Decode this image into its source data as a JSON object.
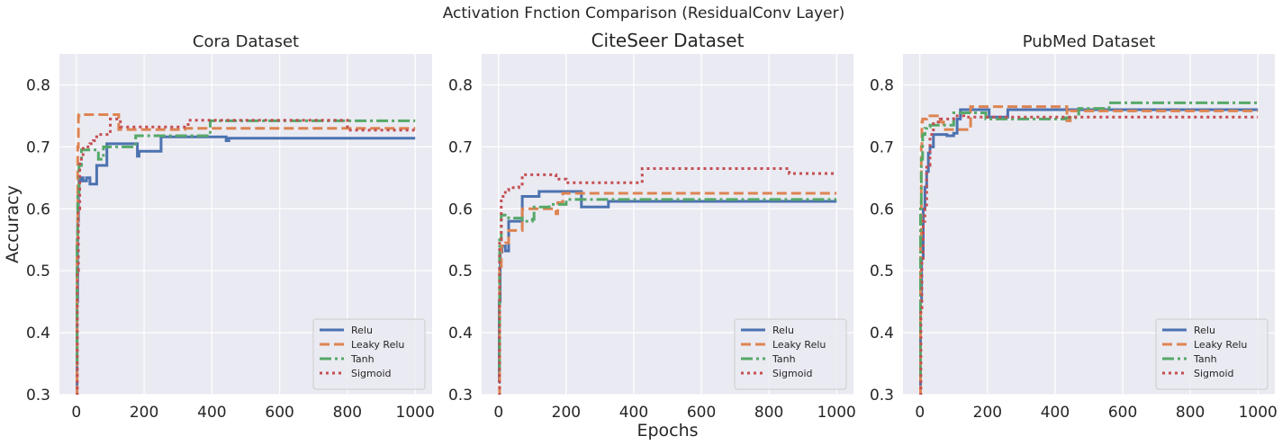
{
  "figure": {
    "suptitle": "Activation Fnction Comparison  (ResidualConv Layer)",
    "xlabel": "Epochs",
    "ylabel": "Accuracy"
  },
  "colors": {
    "background": "#eaeaf2",
    "grid": "#ffffff",
    "relu": "#4c72b0",
    "leaky_relu": "#dd8452",
    "tanh": "#55a868",
    "sigmoid": "#c44e52"
  },
  "chart_data": [
    {
      "type": "line",
      "title": "Cora Dataset",
      "xlabel": "",
      "ylabel": "Accuracy",
      "xlim": [
        -50,
        1050
      ],
      "ylim": [
        0.3,
        0.85
      ],
      "xticks": [
        0,
        200,
        400,
        600,
        800,
        1000
      ],
      "yticks": [
        0.3,
        0.4,
        0.5,
        0.6,
        0.7,
        0.8
      ],
      "grid": true,
      "legend_position": "lower-right",
      "series": [
        {
          "name": "Relu",
          "style": "solid",
          "color": "#4c72b0",
          "x": [
            0,
            2,
            4,
            6,
            8,
            12,
            20,
            30,
            40,
            60,
            70,
            90,
            120,
            175,
            180,
            185,
            250,
            300,
            440,
            442,
            450,
            1000
          ],
          "y": [
            0.3,
            0.45,
            0.58,
            0.63,
            0.645,
            0.65,
            0.645,
            0.65,
            0.64,
            0.67,
            0.67,
            0.705,
            0.705,
            0.705,
            0.685,
            0.693,
            0.716,
            0.716,
            0.716,
            0.71,
            0.714,
            0.714
          ]
        },
        {
          "name": "Leaky Relu",
          "style": "dashed",
          "color": "#dd8452",
          "x": [
            0,
            2,
            4,
            6,
            8,
            120,
            125,
            300,
            320,
            800,
            1000
          ],
          "y": [
            0.3,
            0.55,
            0.7,
            0.75,
            0.752,
            0.752,
            0.728,
            0.728,
            0.73,
            0.73,
            0.73
          ]
        },
        {
          "name": "Tanh",
          "style": "dashdot",
          "color": "#55a868",
          "x": [
            0,
            2,
            4,
            8,
            15,
            60,
            65,
            80,
            170,
            175,
            390,
            395,
            1000
          ],
          "y": [
            0.35,
            0.55,
            0.62,
            0.67,
            0.695,
            0.695,
            0.68,
            0.7,
            0.7,
            0.718,
            0.718,
            0.742,
            0.742
          ]
        },
        {
          "name": "Sigmoid",
          "style": "dotted",
          "color": "#c44e52",
          "x": [
            0,
            3,
            6,
            10,
            20,
            40,
            50,
            60,
            100,
            130,
            150,
            300,
            330,
            780,
            800,
            1000
          ],
          "y": [
            0.3,
            0.5,
            0.6,
            0.68,
            0.7,
            0.705,
            0.71,
            0.72,
            0.745,
            0.732,
            0.732,
            0.732,
            0.743,
            0.743,
            0.727,
            0.727
          ]
        }
      ]
    },
    {
      "type": "line",
      "title": "CiteSeer Dataset",
      "xlabel": "Epochs",
      "ylabel": "",
      "xlim": [
        -50,
        1050
      ],
      "ylim": [
        0.3,
        0.85
      ],
      "xticks": [
        0,
        200,
        400,
        600,
        800,
        1000
      ],
      "yticks": [
        0.3,
        0.4,
        0.5,
        0.6,
        0.7,
        0.8
      ],
      "grid": true,
      "legend_position": "lower-right",
      "series": [
        {
          "name": "Relu",
          "style": "solid",
          "color": "#4c72b0",
          "x": [
            0,
            2,
            5,
            10,
            20,
            30,
            60,
            70,
            120,
            240,
            245,
            320,
            325,
            1000
          ],
          "y": [
            0.32,
            0.45,
            0.53,
            0.54,
            0.532,
            0.58,
            0.58,
            0.62,
            0.628,
            0.628,
            0.603,
            0.603,
            0.612,
            0.612
          ]
        },
        {
          "name": "Leaky Relu",
          "style": "dashed",
          "color": "#dd8452",
          "x": [
            0,
            3,
            8,
            20,
            30,
            60,
            70,
            100,
            150,
            170,
            175,
            190,
            1000
          ],
          "y": [
            0.3,
            0.5,
            0.54,
            0.545,
            0.565,
            0.565,
            0.6,
            0.6,
            0.6,
            0.592,
            0.61,
            0.625,
            0.625
          ]
        },
        {
          "name": "Tanh",
          "style": "dashdot",
          "color": "#55a868",
          "x": [
            0,
            3,
            8,
            30,
            70,
            100,
            105,
            150,
            200,
            1000
          ],
          "y": [
            0.34,
            0.55,
            0.59,
            0.585,
            0.58,
            0.583,
            0.603,
            0.607,
            0.615,
            0.615
          ]
        },
        {
          "name": "Sigmoid",
          "style": "dotted",
          "color": "#c44e52",
          "x": [
            0,
            3,
            8,
            20,
            30,
            60,
            70,
            130,
            170,
            200,
            420,
            425,
            850,
            860,
            1000
          ],
          "y": [
            0.3,
            0.55,
            0.62,
            0.63,
            0.634,
            0.64,
            0.655,
            0.655,
            0.648,
            0.642,
            0.642,
            0.665,
            0.665,
            0.657,
            0.657
          ]
        }
      ]
    },
    {
      "type": "line",
      "title": "PubMed Dataset",
      "xlabel": "",
      "ylabel": "",
      "xlim": [
        -50,
        1050
      ],
      "ylim": [
        0.3,
        0.85
      ],
      "xticks": [
        0,
        200,
        400,
        600,
        800,
        1000
      ],
      "yticks": [
        0.3,
        0.4,
        0.5,
        0.6,
        0.7,
        0.8
      ],
      "grid": true,
      "legend_position": "lower-right",
      "series": [
        {
          "name": "Relu",
          "style": "solid",
          "color": "#4c72b0",
          "x": [
            0,
            2,
            5,
            10,
            15,
            20,
            25,
            30,
            40,
            60,
            80,
            100,
            110,
            120,
            200,
            205,
            250,
            260,
            1000
          ],
          "y": [
            0.3,
            0.45,
            0.52,
            0.6,
            0.635,
            0.66,
            0.69,
            0.7,
            0.72,
            0.72,
            0.718,
            0.722,
            0.745,
            0.76,
            0.76,
            0.748,
            0.748,
            0.76,
            0.76
          ]
        },
        {
          "name": "Leaky Relu",
          "style": "dashed",
          "color": "#dd8452",
          "x": [
            0,
            2,
            4,
            6,
            8,
            20,
            30,
            60,
            70,
            140,
            150,
            430,
            435,
            445,
            1000
          ],
          "y": [
            0.3,
            0.55,
            0.7,
            0.74,
            0.745,
            0.748,
            0.75,
            0.74,
            0.728,
            0.728,
            0.765,
            0.765,
            0.742,
            0.758,
            0.758
          ]
        },
        {
          "name": "Tanh",
          "style": "dashdot",
          "color": "#55a868",
          "x": [
            0,
            2,
            4,
            8,
            15,
            20,
            30,
            100,
            190,
            195,
            420,
            430,
            460,
            470,
            520,
            560,
            1000
          ],
          "y": [
            0.33,
            0.6,
            0.68,
            0.72,
            0.73,
            0.732,
            0.735,
            0.755,
            0.755,
            0.745,
            0.745,
            0.747,
            0.748,
            0.762,
            0.762,
            0.771,
            0.771
          ]
        },
        {
          "name": "Sigmoid",
          "style": "dotted",
          "color": "#c44e52",
          "x": [
            0,
            3,
            6,
            10,
            15,
            20,
            30,
            40,
            60,
            100,
            130,
            1000
          ],
          "y": [
            0.3,
            0.44,
            0.52,
            0.58,
            0.6,
            0.67,
            0.72,
            0.74,
            0.745,
            0.75,
            0.748,
            0.748
          ]
        }
      ]
    }
  ]
}
